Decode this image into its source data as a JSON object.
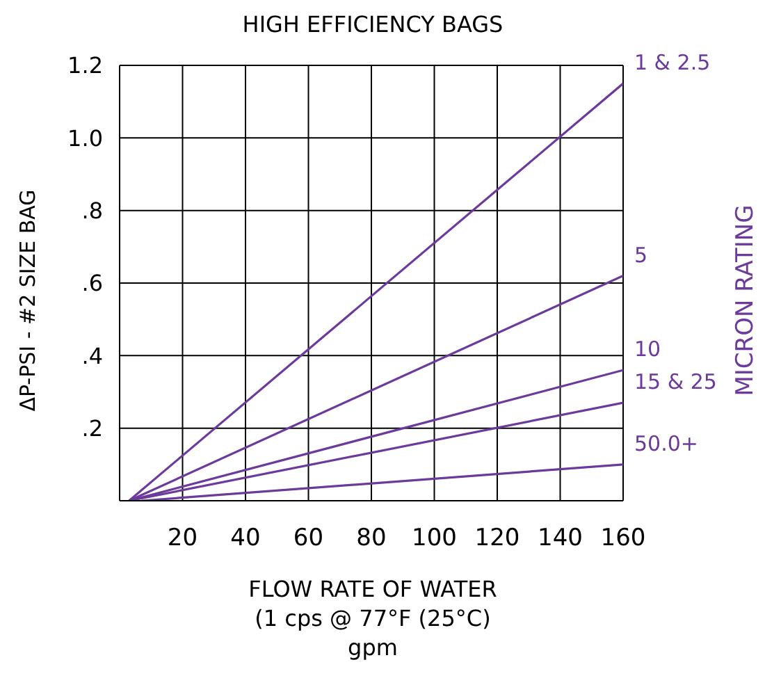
{
  "chart_data": {
    "type": "line",
    "title": "HIGH EFFICIENCY BAGS",
    "xlabel": "FLOW RATE OF WATER\n(1 cps @ 77°F (25°C)\ngpm",
    "ylabel": "ΔP-PSI - #2 SIZE BAG",
    "y2label": "MICRON RATING",
    "xlim": [
      0,
      160
    ],
    "xticks": [
      {
        "value": 0,
        "label": null
      },
      20,
      40,
      60,
      80,
      100,
      120,
      140,
      160
    ],
    "ylim": [
      0,
      1.2
    ],
    "yticks": [
      {
        "value": 0,
        "label": null
      },
      {
        "value": 0.2,
        "label": ".2"
      },
      {
        "value": 0.4,
        "label": ".4"
      },
      {
        "value": 0.6,
        "label": ".6"
      },
      {
        "value": 0.8,
        "label": ".8"
      },
      {
        "value": 1.0,
        "label": "1.0"
      },
      {
        "value": 1.2,
        "label": "1.2"
      }
    ],
    "grid": true,
    "marker": "none",
    "line_style": "solid",
    "series": [
      {
        "name": "1 & 2.5",
        "color": "#6b3a9c",
        "x": [
          3,
          160
        ],
        "values": [
          0,
          1.15
        ]
      },
      {
        "name": "5",
        "color": "#6b3a9c",
        "x": [
          3,
          160
        ],
        "values": [
          0,
          0.62
        ]
      },
      {
        "name": "10",
        "color": "#6b3a9c",
        "x": [
          3,
          160
        ],
        "values": [
          0,
          0.36
        ]
      },
      {
        "name": "15 & 25",
        "color": "#6b3a9c",
        "x": [
          3,
          160
        ],
        "values": [
          0,
          0.27
        ]
      },
      {
        "name": "50.0+",
        "color": "#6b3a9c",
        "x": [
          7,
          160
        ],
        "values": [
          0,
          0.1
        ]
      }
    ]
  }
}
